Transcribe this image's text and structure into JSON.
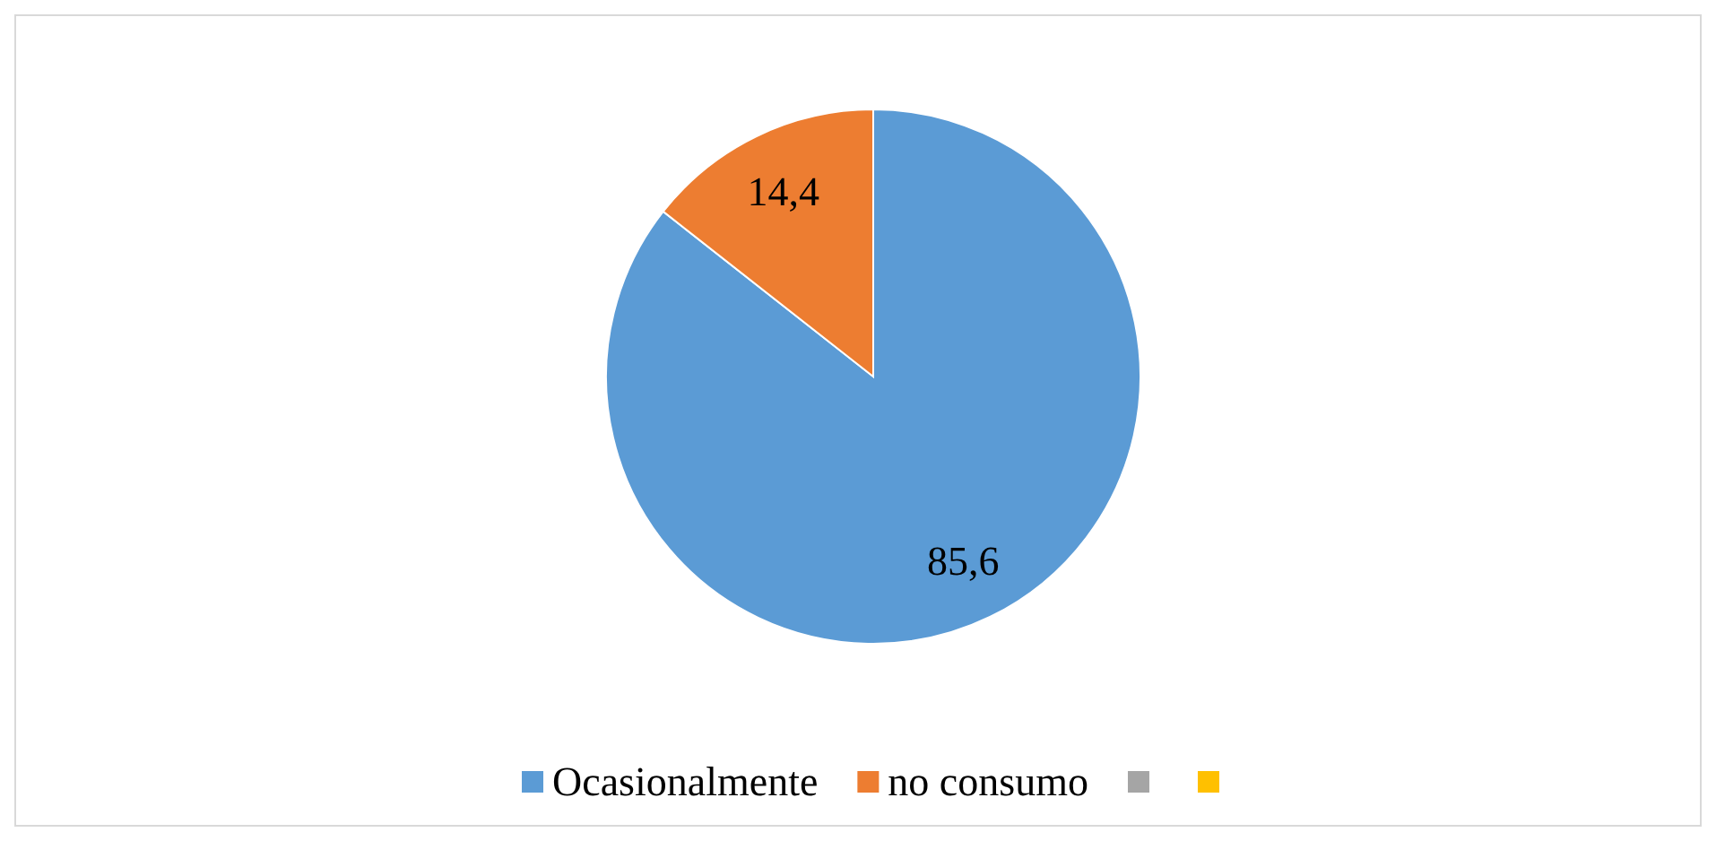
{
  "chart_data": {
    "type": "pie",
    "categories": [
      "Ocasionalmente",
      "no consumo",
      null,
      null
    ],
    "values": [
      85.6,
      14.4,
      null,
      null
    ],
    "colors": [
      "#5b9bd5",
      "#ed7d31",
      "#a5a5a5",
      "#ffc000"
    ],
    "value_labels": [
      "85,6",
      "14,4",
      null,
      null
    ],
    "legend": "bottom"
  }
}
